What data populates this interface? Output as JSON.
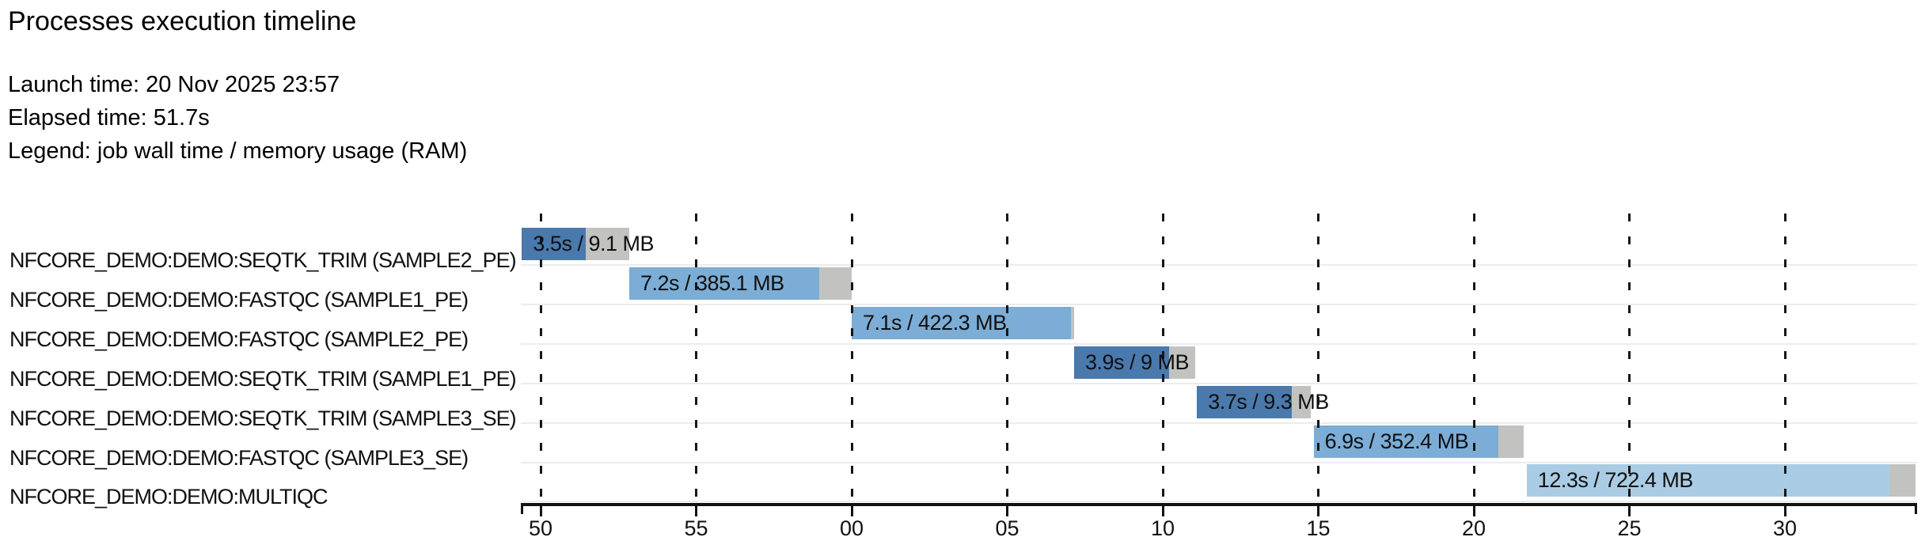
{
  "header": {
    "title": "Processes execution timeline",
    "launch_line": "Launch time: 20 Nov 2025 23:57",
    "elapsed_line": "Elapsed time: 51.7s",
    "legend_line": "Legend: job wall time / memory usage (RAM)"
  },
  "colors": {
    "bar_dark_blue": "#4a79ad",
    "bar_mid_blue": "#7badd6",
    "bar_light_blue": "#a9cce4",
    "bar_gray_tail": "#c2c2c1",
    "row_separator": "#ececec",
    "axis_and_grid": "#161616"
  },
  "chart_data": {
    "type": "gantt",
    "title": "Processes execution timeline",
    "launch_time": "20 Nov 2025 23:57",
    "elapsed_time_s": 51.7,
    "legend": "job wall time / memory usage (RAM)",
    "time_axis": {
      "unit": "seconds (clock seconds, wrapping past the minute)",
      "range_s": [
        49.36,
        94.25
      ],
      "ticks": [
        {
          "t": 50,
          "label": "50"
        },
        {
          "t": 55,
          "label": "55"
        },
        {
          "t": 60,
          "label": "00"
        },
        {
          "t": 65,
          "label": "05"
        },
        {
          "t": 70,
          "label": "10"
        },
        {
          "t": 75,
          "label": "15"
        },
        {
          "t": 80,
          "label": "20"
        },
        {
          "t": 85,
          "label": "25"
        },
        {
          "t": 90,
          "label": "30"
        }
      ]
    },
    "processes": [
      {
        "name": "NFCORE_DEMO:DEMO:SEQTK_TRIM (SAMPLE2_PE)",
        "bar_label": "3.5s / 9.1 MB",
        "wall_time_s": 3.5,
        "memory": "9.1 MB",
        "start_s": 49.4,
        "run_end_s": 51.45,
        "end_s": 52.85,
        "shade": "dark"
      },
      {
        "name": "NFCORE_DEMO:DEMO:FASTQC (SAMPLE1_PE)",
        "bar_label": "7.2s / 385.1 MB",
        "wall_time_s": 7.2,
        "memory": "385.1 MB",
        "start_s": 52.85,
        "run_end_s": 58.95,
        "end_s": 60.0,
        "shade": "mid"
      },
      {
        "name": "NFCORE_DEMO:DEMO:FASTQC (SAMPLE2_PE)",
        "bar_label": "7.1s / 422.3 MB",
        "wall_time_s": 7.1,
        "memory": "422.3 MB",
        "start_s": 60.0,
        "run_end_s": 67.05,
        "end_s": 67.15,
        "shade": "mid"
      },
      {
        "name": "NFCORE_DEMO:DEMO:SEQTK_TRIM (SAMPLE1_PE)",
        "bar_label": "3.9s / 9 MB",
        "wall_time_s": 3.9,
        "memory": "9 MB",
        "start_s": 67.15,
        "run_end_s": 70.2,
        "end_s": 71.05,
        "shade": "dark"
      },
      {
        "name": "NFCORE_DEMO:DEMO:SEQTK_TRIM (SAMPLE3_SE)",
        "bar_label": "3.7s / 9.3 MB",
        "wall_time_s": 3.7,
        "memory": "9.3 MB",
        "start_s": 71.1,
        "run_end_s": 74.15,
        "end_s": 74.75,
        "shade": "dark"
      },
      {
        "name": "NFCORE_DEMO:DEMO:FASTQC (SAMPLE3_SE)",
        "bar_label": "6.9s / 352.4 MB",
        "wall_time_s": 6.9,
        "memory": "352.4 MB",
        "start_s": 74.85,
        "run_end_s": 80.8,
        "end_s": 81.6,
        "shade": "mid"
      },
      {
        "name": "NFCORE_DEMO:DEMO:MULTIQC",
        "bar_label": "12.3s / 722.4 MB",
        "wall_time_s": 12.3,
        "memory": "722.4 MB",
        "start_s": 81.7,
        "run_end_s": 93.35,
        "end_s": 94.2,
        "shade": "light"
      }
    ]
  }
}
